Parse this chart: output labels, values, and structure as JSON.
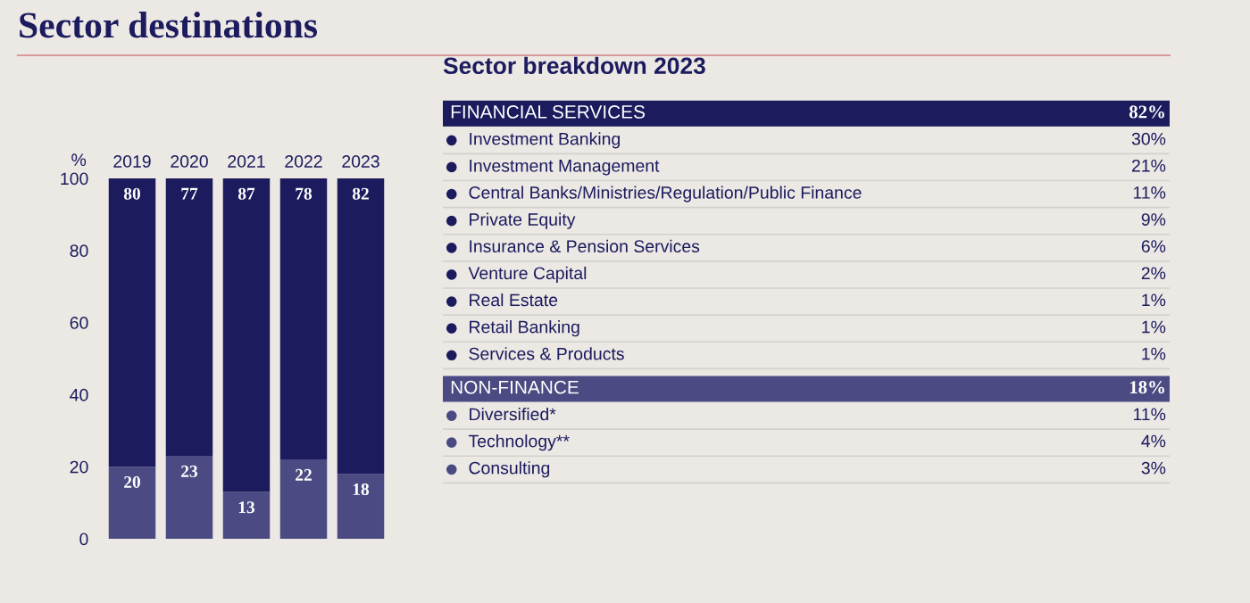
{
  "chart_data": [
    {
      "type": "bar",
      "title": "Sector destinations",
      "ylabel": "%",
      "categories": [
        "2019",
        "2020",
        "2021",
        "2022",
        "2023"
      ],
      "stacked": true,
      "data_labels": true,
      "ylim": [
        0,
        100
      ],
      "yticks": [
        0,
        20,
        40,
        60,
        80,
        100
      ],
      "grid": false,
      "series": [
        {
          "color": "#4b4a82",
          "values": [
            20,
            23,
            13,
            22,
            18
          ]
        },
        {
          "color": "#1b1b5e",
          "values": [
            80,
            77,
            87,
            78,
            82
          ]
        }
      ]
    },
    {
      "type": "other",
      "title": "Sector breakdown 2023",
      "categories": [
        "FINANCIAL SERVICES",
        "Investment Banking",
        "Investment Management",
        "Central Banks/Ministries/Regulation/Public Finance",
        "Private Equity",
        "Insurance & Pension Services",
        "Venture Capital",
        "Real Estate",
        "Retail Banking",
        "Services & Products",
        "NON-FINANCE",
        "Diversified*",
        "Technology**",
        "Consulting"
      ],
      "value_labels": [
        "82%",
        "30%",
        "21%",
        "11%",
        "9%",
        "6%",
        "2%",
        "1%",
        "1%",
        "1%",
        "18%",
        "11%",
        "4%",
        "3%"
      ],
      "colors": [
        "#1b1b5e",
        null,
        null,
        null,
        null,
        null,
        null,
        null,
        null,
        null,
        "#4b4a82",
        null,
        null,
        null
      ]
    }
  ]
}
